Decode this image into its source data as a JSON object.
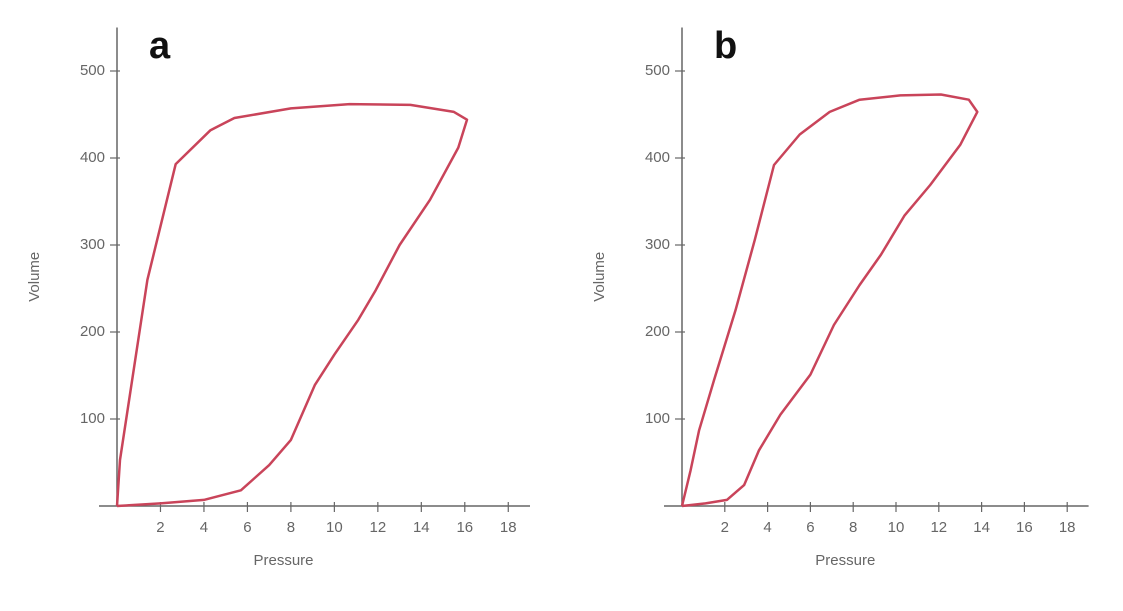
{
  "chart_data": [
    {
      "type": "line",
      "title": "a",
      "x_label": "Pressure",
      "y_label": "Volume",
      "xlim": [
        0,
        19
      ],
      "ylim": [
        0,
        550
      ],
      "xticks": [
        2,
        4,
        6,
        8,
        10,
        12,
        14,
        16,
        18
      ],
      "yticks": [
        100,
        200,
        300,
        400,
        500
      ],
      "series": [
        {
          "color": "#c9445a",
          "x": [
            0,
            0.14,
            1.4,
            2.7,
            4.3,
            5.4,
            8,
            10.7,
            13.5,
            15.5,
            16.1,
            15.7,
            14.4,
            13,
            11.9,
            11.1,
            10,
            9.1,
            8,
            7,
            5.7,
            4,
            2,
            0
          ],
          "values": [
            0,
            53,
            260,
            393,
            432,
            446,
            457,
            462,
            461,
            453,
            444,
            412,
            352,
            300,
            248,
            214,
            174,
            139,
            76,
            47,
            18,
            7,
            3,
            0
          ]
        }
      ]
    },
    {
      "type": "line",
      "title": "b",
      "x_label": "Pressure",
      "y_label": "Volume",
      "xlim": [
        0,
        19
      ],
      "ylim": [
        0,
        550
      ],
      "xticks": [
        2,
        4,
        6,
        8,
        10,
        12,
        14,
        16,
        18
      ],
      "yticks": [
        100,
        200,
        300,
        400,
        500
      ],
      "series": [
        {
          "color": "#c9445a",
          "x": [
            0,
            0.4,
            0.8,
            1.5,
            2.5,
            3.4,
            4.3,
            5.5,
            6.9,
            8.3,
            10.2,
            12.1,
            13.4,
            13.8,
            13,
            11.6,
            10.4,
            9.3,
            8.3,
            7.1,
            6,
            4.6,
            3.6,
            2.9,
            2.1,
            1.1,
            0
          ],
          "values": [
            0,
            41,
            87,
            145,
            225,
            306,
            392,
            427,
            453,
            467,
            472,
            473,
            467,
            453,
            415,
            369,
            334,
            289,
            254,
            208,
            151,
            105,
            64,
            24,
            7,
            3,
            0
          ]
        }
      ]
    }
  ]
}
